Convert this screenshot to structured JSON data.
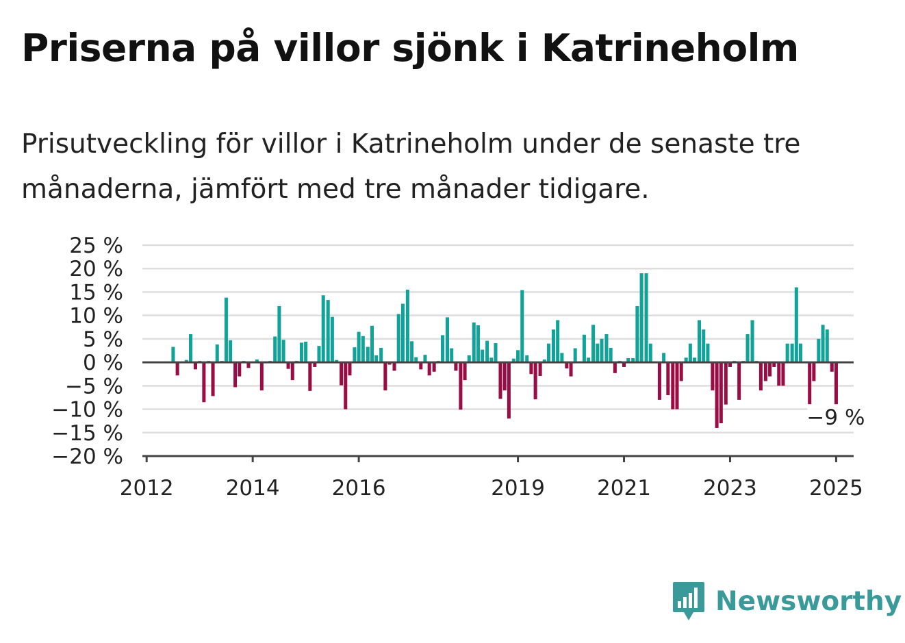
{
  "title": "Priserna på villor sjönk i Katrineholm",
  "subtitle": "Prisutveckling för villor i Katrineholm under de senaste tre månaderna, jämfört med tre månader tidigare.",
  "brand": {
    "name": "Newsworthy",
    "color": "#3a9a9a",
    "icon": "bar-chart-speech-bubble-icon"
  },
  "colors": {
    "positive": "#12a398",
    "negative": "#990d45",
    "grid": "#dddddd",
    "zero_line": "#444444"
  },
  "chart_data": {
    "type": "bar",
    "title": "",
    "xlabel": "",
    "ylabel": "",
    "ylim": [
      -20,
      25
    ],
    "xlim": [
      2011.92,
      2025.33
    ],
    "grid": true,
    "legend": "none",
    "y_ticks": [
      25,
      20,
      15,
      10,
      5,
      0,
      -5,
      -10,
      -15,
      -20
    ],
    "y_tick_labels": [
      "25 %",
      "20 %",
      "15 %",
      "10 %",
      "5 %",
      "0 %",
      "−5 %",
      "−10 %",
      "−15 %",
      "−20 %"
    ],
    "x_ticks": [
      2012,
      2014,
      2016,
      2019,
      2021,
      2023,
      2025
    ],
    "x_tick_labels": [
      "2012",
      "2014",
      "2016",
      "2019",
      "2021",
      "2023",
      "2025"
    ],
    "series": [
      {
        "x": [
          2012.5,
          2012.58,
          2012.67,
          2012.75,
          2012.83,
          2012.92,
          2013.0,
          2013.08,
          2013.17,
          2013.25,
          2013.33,
          2013.42,
          2013.5,
          2013.58,
          2013.67,
          2013.75,
          2013.83,
          2013.92,
          2014.0,
          2014.08,
          2014.17,
          2014.25,
          2014.33,
          2014.42,
          2014.5,
          2014.58,
          2014.67,
          2014.75,
          2014.83,
          2014.92,
          2015.0,
          2015.08,
          2015.17,
          2015.25,
          2015.33,
          2015.42,
          2015.5,
          2015.58,
          2015.67,
          2015.75,
          2015.83,
          2015.92,
          2016.0,
          2016.08,
          2016.17,
          2016.25,
          2016.33,
          2016.42,
          2016.5,
          2016.58,
          2016.67,
          2016.75,
          2016.83,
          2016.92,
          2017.0,
          2017.08,
          2017.17,
          2017.25,
          2017.33,
          2017.42,
          2017.5,
          2017.58,
          2017.67,
          2017.75,
          2017.83,
          2017.92,
          2018.0,
          2018.08,
          2018.17,
          2018.25,
          2018.33,
          2018.42,
          2018.5,
          2018.58,
          2018.67,
          2018.75,
          2018.83,
          2018.92,
          2019.0,
          2019.08,
          2019.17,
          2019.25,
          2019.33,
          2019.42,
          2019.5,
          2019.58,
          2019.67,
          2019.75,
          2019.83,
          2019.92,
          2020.0,
          2020.08,
          2020.17,
          2020.25,
          2020.33,
          2020.42,
          2020.5,
          2020.58,
          2020.67,
          2020.75,
          2020.83,
          2020.92,
          2021.0,
          2021.08,
          2021.17,
          2021.25,
          2021.33,
          2021.42,
          2021.5,
          2021.58,
          2021.67,
          2021.75,
          2021.83,
          2021.92,
          2022.0,
          2022.08,
          2022.17,
          2022.25,
          2022.33,
          2022.42,
          2022.5,
          2022.58,
          2022.67,
          2022.75,
          2022.83,
          2022.92,
          2023.0,
          2023.08,
          2023.17,
          2023.25,
          2023.33,
          2023.42,
          2023.5,
          2023.58,
          2023.67,
          2023.75,
          2023.83,
          2023.92,
          2024.0,
          2024.08,
          2024.17,
          2024.25,
          2024.33,
          2024.42,
          2024.5,
          2024.58,
          2024.67,
          2024.75,
          2024.83,
          2024.92,
          2025.0
        ],
        "values": [
          3.3,
          -2.8,
          0.2,
          0.5,
          6.0,
          -1.5,
          0.3,
          -8.5,
          0.3,
          -7.2,
          3.8,
          0.3,
          13.8,
          4.7,
          -5.3,
          -3.0,
          0.3,
          -1.2,
          0.2,
          0.6,
          -6.0,
          0.2,
          0.3,
          5.5,
          12.0,
          4.8,
          -1.4,
          -3.8,
          0.3,
          4.2,
          4.4,
          -6.1,
          -1.0,
          3.5,
          14.3,
          13.3,
          9.7,
          0.5,
          -4.9,
          -10.0,
          -2.8,
          3.2,
          6.5,
          5.6,
          3.3,
          7.8,
          1.5,
          3.1,
          -6.0,
          -0.5,
          -1.8,
          10.3,
          12.5,
          15.5,
          4.5,
          1.1,
          -1.5,
          1.6,
          -2.8,
          -2.0,
          0.3,
          5.8,
          9.6,
          3.0,
          -1.8,
          -10.1,
          -3.8,
          1.5,
          8.5,
          7.9,
          2.7,
          4.6,
          1.0,
          4.1,
          -7.8,
          -6.0,
          -12.0,
          0.8,
          2.6,
          15.4,
          1.5,
          -2.5,
          -7.9,
          -2.9,
          0.6,
          4.0,
          7.0,
          9.0,
          2.0,
          -1.3,
          -3.0,
          3.0,
          0.2,
          5.9,
          1.0,
          8.0,
          4.0,
          5.0,
          6.0,
          3.1,
          -2.3,
          0.3,
          -1.0,
          0.9,
          0.9,
          12.0,
          19.0,
          19.0,
          4.0,
          0.2,
          -8.0,
          2.0,
          -7.0,
          -10.0,
          -10.0,
          -4.0,
          1.0,
          4.0,
          1.0,
          9.0,
          7.0,
          4.0,
          -6.0,
          -14.0,
          -13.0,
          -9.0,
          -1.0,
          0.3,
          -8.0,
          0.3,
          6.0,
          9.0,
          0.3,
          -6.0,
          -4.0,
          -3.0,
          -1.0,
          -5.0,
          -5.0,
          4.0,
          4.0,
          16.0,
          4.0,
          0.2,
          -9.0,
          -4.0,
          5.0,
          8.0,
          7.0,
          -2.0,
          -9.0
        ]
      }
    ],
    "annotations": [
      {
        "x": 2025.0,
        "y": -9,
        "text": "−9 %"
      }
    ]
  }
}
